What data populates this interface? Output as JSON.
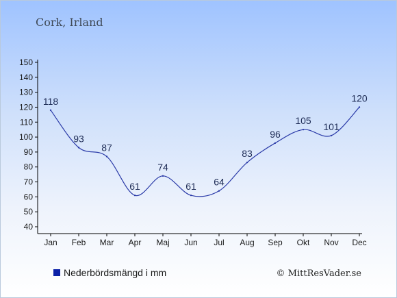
{
  "chart_data": {
    "type": "line",
    "title": "Cork, Irland",
    "categories": [
      "Jan",
      "Feb",
      "Mar",
      "Apr",
      "Maj",
      "Jun",
      "Jul",
      "Aug",
      "Sep",
      "Okt",
      "Nov",
      "Dec"
    ],
    "series": [
      {
        "name": "Nederbördsmängd i mm",
        "values": [
          118,
          93,
          87,
          61,
          74,
          61,
          64,
          83,
          96,
          105,
          101,
          120
        ]
      }
    ],
    "ylim": [
      40,
      150
    ],
    "yticks": [
      40,
      50,
      60,
      70,
      80,
      90,
      100,
      110,
      120,
      130,
      140,
      150
    ],
    "grid": false,
    "legend": "bottom-left",
    "line_color": "#2a3aa8",
    "legend_color": "#0c21a8"
  },
  "credit": "© MittResVader.se"
}
